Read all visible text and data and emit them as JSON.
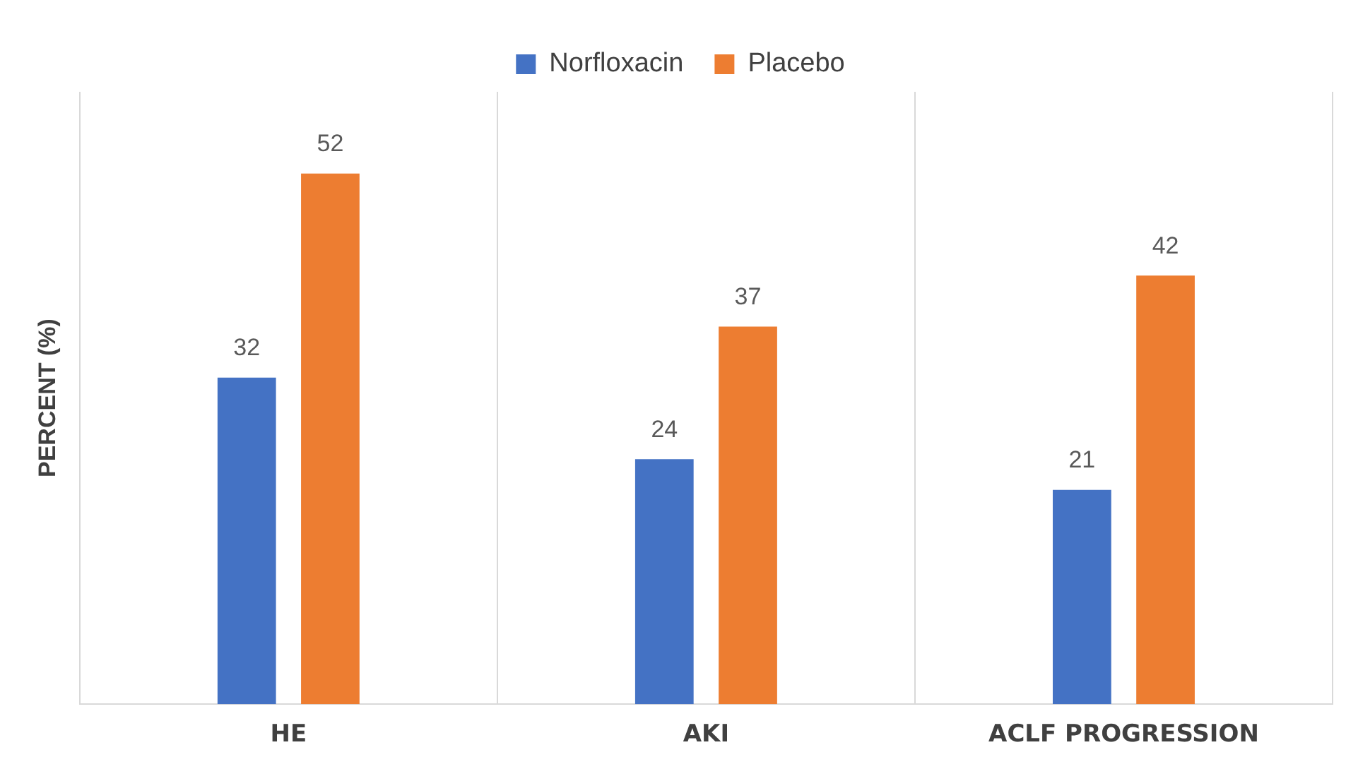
{
  "chart_data": {
    "type": "bar",
    "ylabel": "PERCENT (%)",
    "categories": [
      "HE",
      "AKI",
      "ACLF PROGRESSION"
    ],
    "series": [
      {
        "name": "Norfloxacin",
        "color": "#4472c4",
        "values": [
          32,
          24,
          21
        ]
      },
      {
        "name": "Placebo",
        "color": "#ed7d31",
        "values": [
          52,
          37,
          42
        ]
      }
    ],
    "ylim": [
      0,
      60
    ],
    "tick_labels": "x",
    "grid": "x",
    "legend": "top",
    "data_labels": true
  }
}
